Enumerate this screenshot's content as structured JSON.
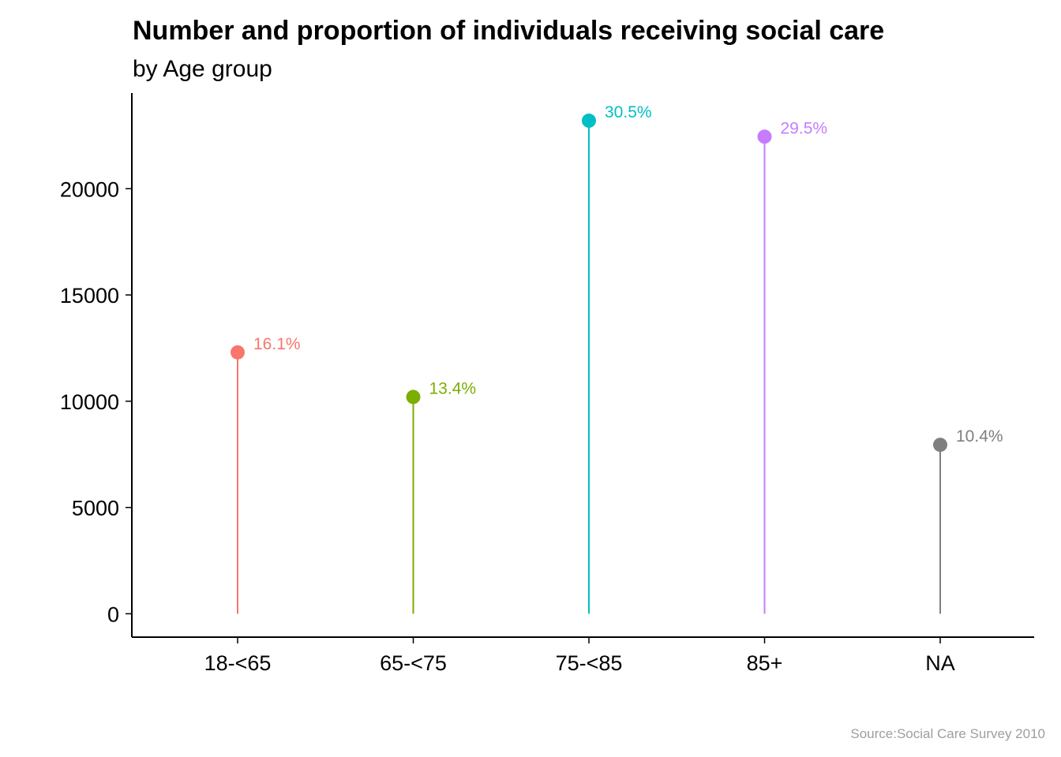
{
  "chart_data": {
    "type": "lollipop",
    "title": "Number and proportion of individuals receiving social care",
    "subtitle": "by Age group",
    "caption": "Source:Social Care Survey 2010",
    "xlabel": "",
    "ylabel": "",
    "categories": [
      "18-<65",
      "65-<75",
      "75-<85",
      "85+",
      "NA"
    ],
    "values": [
      12300,
      10200,
      23200,
      22450,
      7950
    ],
    "labels": [
      "16.1%",
      "13.4%",
      "30.5%",
      "29.5%",
      "10.4%"
    ],
    "colors": [
      "#F8766D",
      "#7CAE00",
      "#00BFC4",
      "#C77CFF",
      "#7F7F7F"
    ],
    "yticks": [
      0,
      5000,
      10000,
      15000,
      20000
    ],
    "ylim": [
      -1100,
      24500
    ],
    "grid": false,
    "legend": "none"
  }
}
